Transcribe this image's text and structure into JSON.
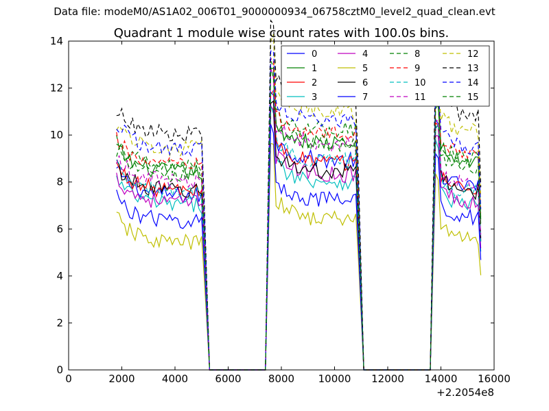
{
  "suptitle": "Data file: modeM0/AS1A02_006T01_9000000934_06758cztM0_level2_quad_clean.evt",
  "chart_data": {
    "type": "line",
    "title": "Quadrant 1 module wise count rates with 100.0s bins.",
    "xlabel": "",
    "ylabel": "",
    "x_offset_label": "+2.2054e8",
    "xlim": [
      0,
      16000
    ],
    "ylim": [
      0,
      14
    ],
    "xticks": [
      "0",
      "2000",
      "4000",
      "6000",
      "8000",
      "10000",
      "12000",
      "14000",
      "16000"
    ],
    "yticks": [
      "0",
      "2",
      "4",
      "6",
      "8",
      "10",
      "12",
      "14"
    ],
    "legend_position": "top-right",
    "segments": [
      {
        "start": 1800,
        "end": 5100
      },
      {
        "start": 7600,
        "end": 10900
      },
      {
        "start": 13800,
        "end": 15500
      }
    ],
    "gap_ranges": [
      [
        5300,
        7400
      ],
      [
        11100,
        13600
      ]
    ],
    "series": [
      {
        "name": "0",
        "color": "#0000ff",
        "dash": "solid",
        "levels": [
          7.4,
          8.9,
          7.8
        ]
      },
      {
        "name": "1",
        "color": "#008000",
        "dash": "solid",
        "levels": [
          8.4,
          9.6,
          8.9
        ]
      },
      {
        "name": "2",
        "color": "#ff0000",
        "dash": "solid",
        "levels": [
          7.6,
          8.8,
          7.7
        ]
      },
      {
        "name": "3",
        "color": "#00bfbf",
        "dash": "solid",
        "levels": [
          7.0,
          8.0,
          7.0
        ]
      },
      {
        "name": "4",
        "color": "#bf00bf",
        "dash": "solid",
        "levels": [
          7.1,
          8.3,
          7.2
        ]
      },
      {
        "name": "5",
        "color": "#bfbf00",
        "dash": "solid",
        "levels": [
          5.4,
          6.4,
          5.6
        ]
      },
      {
        "name": "6",
        "color": "#000000",
        "dash": "solid",
        "levels": [
          7.6,
          8.4,
          7.6
        ]
      },
      {
        "name": "7",
        "color": "#0000ff",
        "dash": "solid",
        "levels": [
          6.3,
          7.2,
          6.5
        ]
      },
      {
        "name": "8",
        "color": "#008000",
        "dash": "dashed",
        "levels": [
          8.6,
          10.2,
          9.0
        ]
      },
      {
        "name": "9",
        "color": "#ff0000",
        "dash": "dashed",
        "levels": [
          8.7,
          10.0,
          9.3
        ]
      },
      {
        "name": "10",
        "color": "#00bfbf",
        "dash": "dashed",
        "levels": [
          7.5,
          8.9,
          7.6
        ]
      },
      {
        "name": "11",
        "color": "#bf00bf",
        "dash": "dashed",
        "levels": [
          8.0,
          9.6,
          8.0
        ]
      },
      {
        "name": "12",
        "color": "#bfbf00",
        "dash": "dashed",
        "levels": [
          9.4,
          11.0,
          10.2
        ]
      },
      {
        "name": "13",
        "color": "#000000",
        "dash": "dashed",
        "levels": [
          10.0,
          11.6,
          10.8
        ]
      },
      {
        "name": "14",
        "color": "#0000ff",
        "dash": "dashed",
        "levels": [
          9.4,
          10.6,
          9.5
        ]
      },
      {
        "name": "15",
        "color": "#008000",
        "dash": "dashed",
        "levels": [
          8.2,
          9.6,
          8.6
        ]
      }
    ]
  }
}
